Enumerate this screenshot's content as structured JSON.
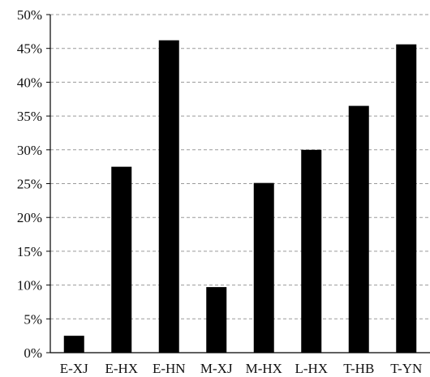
{
  "chart_data": {
    "type": "bar",
    "title": "",
    "xlabel": "",
    "ylabel": "",
    "categories": [
      "E-XJ",
      "E-HX",
      "E-HN",
      "M-XJ",
      "M-HX",
      "L-HX",
      "T-HB",
      "T-YN"
    ],
    "values": [
      2.5,
      27.5,
      46.2,
      9.7,
      25.1,
      30.0,
      36.5,
      45.6
    ],
    "ylim": [
      0,
      50
    ],
    "yticks": [
      0,
      5,
      10,
      15,
      20,
      25,
      30,
      35,
      40,
      45,
      50
    ],
    "ytick_labels": [
      "0%",
      "5%",
      "10%",
      "15%",
      "20%",
      "25%",
      "30%",
      "35%",
      "40%",
      "45%",
      "50%"
    ],
    "grid": "horizontal dashed",
    "legend": "none",
    "bar_color": "#000000",
    "grid_color": "#9a9a9a"
  }
}
